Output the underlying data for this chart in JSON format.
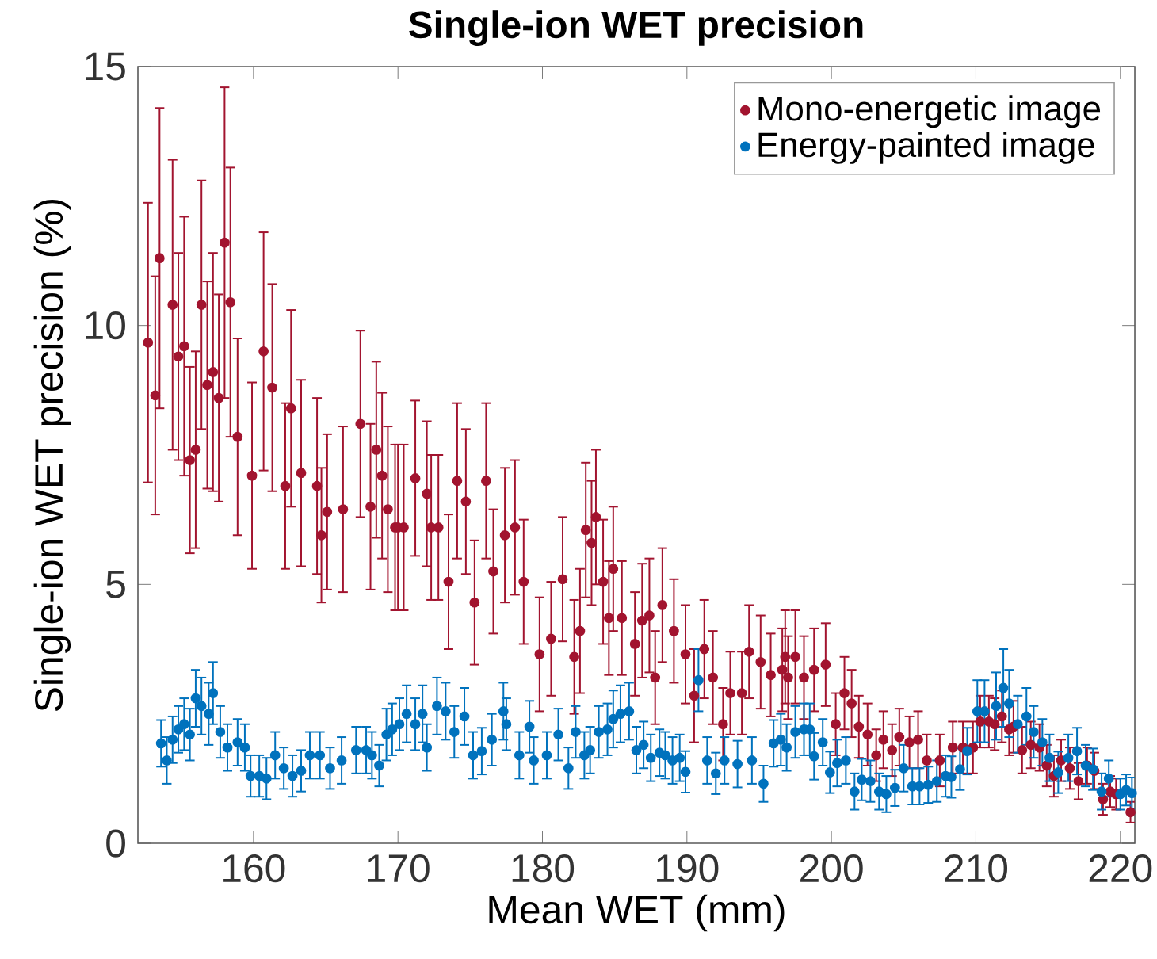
{
  "chart_data": {
    "type": "scatter",
    "title": "Single-ion WET precision",
    "xlabel": "Mean WET (mm)",
    "ylabel": "Single-ion WET precision (%)",
    "xlim": [
      152,
      221
    ],
    "ylim": [
      0,
      15
    ],
    "xticks": [
      160,
      170,
      180,
      190,
      200,
      210,
      220
    ],
    "yticks": [
      0,
      5,
      10,
      15
    ],
    "legend": "top right",
    "marker": "circle",
    "series": [
      {
        "name": "Mono-energetic image",
        "color": "#a2142f",
        "x": [
          152.7,
          153.2,
          153.5,
          154.4,
          154.8,
          155.2,
          155.6,
          156.0,
          156.4,
          156.8,
          157.2,
          157.6,
          158.0,
          158.4,
          158.9,
          159.9,
          160.7,
          161.3,
          162.2,
          162.6,
          163.3,
          164.4,
          164.7,
          165.1,
          166.2,
          167.4,
          168.1,
          168.5,
          168.9,
          169.3,
          169.8,
          170.0,
          170.4,
          171.2,
          172.0,
          172.3,
          172.8,
          173.5,
          174.1,
          174.7,
          175.3,
          176.1,
          176.6,
          177.4,
          178.1,
          178.7,
          179.8,
          180.6,
          181.4,
          182.2,
          182.6,
          183.0,
          183.4,
          183.7,
          184.2,
          184.6,
          184.9,
          185.5,
          186.4,
          186.9,
          187.4,
          187.8,
          188.3,
          189.1,
          189.9,
          190.5,
          191.2,
          191.8,
          192.5,
          193.0,
          193.8,
          194.3,
          195.1,
          195.8,
          196.6,
          196.8,
          197.0,
          197.5,
          198.1,
          198.8,
          199.6,
          200.3,
          200.9,
          201.4,
          201.9,
          202.5,
          203.1,
          203.6,
          204.2,
          204.7,
          205.4,
          206.0,
          206.6,
          207.5,
          208.4,
          209.1,
          209.8,
          210.3,
          210.9,
          211.3,
          211.8,
          212.3,
          212.6,
          213.2,
          213.8,
          214.4,
          214.9,
          215.4,
          215.9,
          216.5,
          217.1,
          217.7,
          218.2,
          218.8,
          219.3,
          219.7,
          220.7
        ],
        "values": [
          9.67,
          8.65,
          11.3,
          10.4,
          9.4,
          9.6,
          7.4,
          7.6,
          10.4,
          8.85,
          9.1,
          8.6,
          11.6,
          10.45,
          7.85,
          7.1,
          9.5,
          8.8,
          6.9,
          8.4,
          7.15,
          6.9,
          5.95,
          6.4,
          6.45,
          8.1,
          6.5,
          7.6,
          7.1,
          6.45,
          6.1,
          6.1,
          6.1,
          7.05,
          6.75,
          6.1,
          6.1,
          5.05,
          7.0,
          6.6,
          4.65,
          7.0,
          5.25,
          5.95,
          6.1,
          5.05,
          3.65,
          3.95,
          5.1,
          3.6,
          4.1,
          6.05,
          5.8,
          6.3,
          5.05,
          4.35,
          5.3,
          4.35,
          3.85,
          4.3,
          4.4,
          3.2,
          4.6,
          4.1,
          3.65,
          2.85,
          3.75,
          3.2,
          2.3,
          2.9,
          2.9,
          3.7,
          3.5,
          3.25,
          3.35,
          3.6,
          3.2,
          3.6,
          3.2,
          3.35,
          3.45,
          2.3,
          2.9,
          2.7,
          2.25,
          2.1,
          1.7,
          2.0,
          1.8,
          2.05,
          1.95,
          2.0,
          1.6,
          1.6,
          1.85,
          1.85,
          1.85,
          2.35,
          2.35,
          2.3,
          2.45,
          2.2,
          2.25,
          1.8,
          1.9,
          1.85,
          1.5,
          1.3,
          1.6,
          1.45,
          1.2,
          1.5,
          1.4,
          0.85,
          1.0,
          0.95,
          0.6
        ],
        "errors": [
          2.7,
          2.3,
          2.9,
          2.8,
          2.0,
          2.5,
          1.8,
          1.9,
          2.4,
          2.0,
          2.3,
          2.0,
          3.0,
          2.6,
          1.9,
          1.8,
          2.3,
          2.0,
          1.6,
          1.9,
          1.8,
          1.7,
          1.3,
          1.5,
          1.6,
          1.8,
          1.6,
          1.7,
          1.6,
          1.6,
          1.6,
          1.6,
          1.6,
          1.5,
          1.4,
          1.4,
          1.4,
          1.3,
          1.5,
          1.4,
          1.2,
          1.5,
          1.2,
          1.3,
          1.3,
          1.2,
          1.1,
          1.1,
          1.2,
          1.1,
          1.2,
          1.3,
          1.2,
          1.3,
          1.2,
          1.1,
          1.2,
          1.1,
          1.0,
          1.1,
          1.1,
          0.9,
          1.1,
          1.0,
          0.95,
          0.9,
          0.95,
          0.9,
          0.7,
          0.8,
          0.8,
          0.9,
          0.9,
          0.8,
          0.8,
          0.9,
          0.8,
          0.9,
          0.8,
          0.8,
          0.8,
          0.6,
          0.7,
          0.65,
          0.6,
          0.6,
          0.5,
          0.55,
          0.5,
          0.55,
          0.5,
          0.55,
          0.5,
          0.5,
          0.5,
          0.5,
          0.5,
          0.5,
          0.5,
          0.5,
          0.5,
          0.5,
          0.5,
          0.45,
          0.45,
          0.45,
          0.4,
          0.4,
          0.4,
          0.4,
          0.35,
          0.35,
          0.35,
          0.3,
          0.3,
          0.3,
          0.2
        ]
      },
      {
        "name": "Energy-painted image",
        "color": "#0072bd",
        "x": [
          153.6,
          154.0,
          154.4,
          154.8,
          155.2,
          155.6,
          156.0,
          156.4,
          156.9,
          157.2,
          157.7,
          158.2,
          158.9,
          159.4,
          159.8,
          160.4,
          160.9,
          161.5,
          162.1,
          162.7,
          163.3,
          163.9,
          164.6,
          165.3,
          166.1,
          167.1,
          167.8,
          168.2,
          168.7,
          169.2,
          169.6,
          170.1,
          170.6,
          171.2,
          171.7,
          172.0,
          172.7,
          173.3,
          173.9,
          174.6,
          175.2,
          175.8,
          176.5,
          177.3,
          177.5,
          178.4,
          179.1,
          179.4,
          180.3,
          181.1,
          181.8,
          182.3,
          182.9,
          183.3,
          183.9,
          184.5,
          184.9,
          185.4,
          186.0,
          186.5,
          187.0,
          187.5,
          188.1,
          188.5,
          189.0,
          189.5,
          189.9,
          190.8,
          191.4,
          192.0,
          192.6,
          193.5,
          194.5,
          195.3,
          196.0,
          196.5,
          196.9,
          197.5,
          198.1,
          198.5,
          198.8,
          199.4,
          199.9,
          200.4,
          201.0,
          201.6,
          202.1,
          202.7,
          203.3,
          203.8,
          204.4,
          205.0,
          205.6,
          206.1,
          206.7,
          207.3,
          207.9,
          208.3,
          208.9,
          209.4,
          210.1,
          210.6,
          211.4,
          211.9,
          212.3,
          212.9,
          213.5,
          214.0,
          214.6,
          215.1,
          215.7,
          216.4,
          217.0,
          217.6,
          218.1,
          218.7,
          219.2,
          220.0,
          220.4,
          220.8
        ],
        "values": [
          1.93,
          1.6,
          2.0,
          2.2,
          2.3,
          2.1,
          2.8,
          2.65,
          2.5,
          2.9,
          2.15,
          1.85,
          1.95,
          1.85,
          1.3,
          1.3,
          1.25,
          1.7,
          1.45,
          1.3,
          1.4,
          1.7,
          1.7,
          1.45,
          1.6,
          1.8,
          1.8,
          1.7,
          1.5,
          2.1,
          2.2,
          2.3,
          2.5,
          2.3,
          2.5,
          1.85,
          2.65,
          2.55,
          2.15,
          2.45,
          1.7,
          1.78,
          2.0,
          2.55,
          2.3,
          1.7,
          2.25,
          1.6,
          1.7,
          2.1,
          1.45,
          2.15,
          1.7,
          1.8,
          2.15,
          2.2,
          2.4,
          2.5,
          2.55,
          1.8,
          1.9,
          1.65,
          1.75,
          1.7,
          1.6,
          1.65,
          1.38,
          3.15,
          1.6,
          1.35,
          1.6,
          1.53,
          1.6,
          1.15,
          1.93,
          2.0,
          1.85,
          2.15,
          2.2,
          2.2,
          1.68,
          1.95,
          1.37,
          1.55,
          1.6,
          1.0,
          1.23,
          1.2,
          1.0,
          0.95,
          1.07,
          1.45,
          1.1,
          1.1,
          1.13,
          1.2,
          1.3,
          1.28,
          1.43,
          1.78,
          2.55,
          2.55,
          2.65,
          3.0,
          2.7,
          2.3,
          2.45,
          2.15,
          1.95,
          1.65,
          1.37,
          1.65,
          1.78,
          1.5,
          1.43,
          1.0,
          1.25,
          0.95,
          1.03,
          0.97
        ],
        "errors": [
          0.45,
          0.45,
          0.45,
          0.45,
          0.5,
          0.5,
          0.55,
          0.55,
          0.6,
          0.6,
          0.5,
          0.45,
          0.45,
          0.45,
          0.4,
          0.4,
          0.4,
          0.45,
          0.4,
          0.4,
          0.4,
          0.45,
          0.45,
          0.4,
          0.45,
          0.45,
          0.45,
          0.45,
          0.4,
          0.5,
          0.5,
          0.5,
          0.55,
          0.5,
          0.55,
          0.45,
          0.55,
          0.55,
          0.5,
          0.55,
          0.45,
          0.45,
          0.5,
          0.55,
          0.5,
          0.45,
          0.5,
          0.45,
          0.45,
          0.5,
          0.4,
          0.5,
          0.45,
          0.45,
          0.5,
          0.5,
          0.55,
          0.55,
          0.55,
          0.45,
          0.45,
          0.45,
          0.45,
          0.45,
          0.45,
          0.45,
          0.4,
          0.6,
          0.45,
          0.4,
          0.45,
          0.45,
          0.45,
          0.35,
          0.45,
          0.5,
          0.45,
          0.5,
          0.5,
          0.5,
          0.45,
          0.45,
          0.4,
          0.45,
          0.45,
          0.35,
          0.4,
          0.4,
          0.35,
          0.35,
          0.35,
          0.45,
          0.35,
          0.35,
          0.35,
          0.4,
          0.4,
          0.4,
          0.4,
          0.45,
          0.6,
          0.6,
          0.65,
          0.75,
          0.65,
          0.55,
          0.55,
          0.5,
          0.45,
          0.45,
          0.4,
          0.45,
          0.45,
          0.4,
          0.4,
          0.35,
          0.35,
          0.3,
          0.3,
          0.3
        ]
      }
    ]
  }
}
